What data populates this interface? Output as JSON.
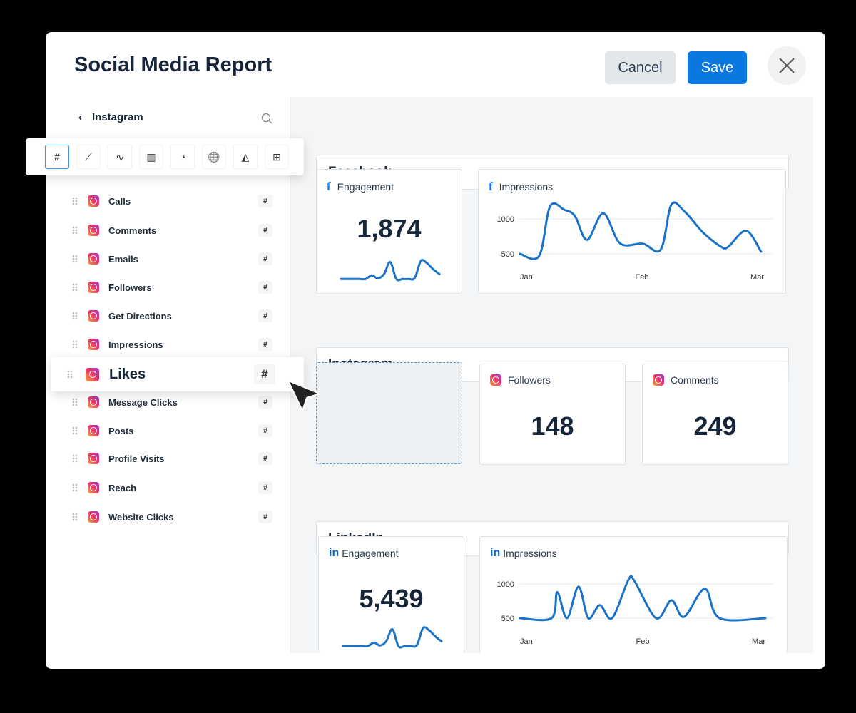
{
  "header": {
    "title": "Social Media Report",
    "cancel_label": "Cancel",
    "save_label": "Save"
  },
  "sidebar": {
    "back_title": "Instagram",
    "toolbar": [
      "number",
      "line-chart",
      "sparkline",
      "bar-chart",
      "pie-chart",
      "globe",
      "area-chart",
      "table"
    ],
    "toolbar_active_label": "#",
    "items": [
      {
        "label": "Calls"
      },
      {
        "label": "Comments"
      },
      {
        "label": "Emails"
      },
      {
        "label": "Followers"
      },
      {
        "label": "Get Directions"
      },
      {
        "label": "Impressions"
      },
      {
        "label": "Message Clicks"
      },
      {
        "label": "Posts"
      },
      {
        "label": "Profile Visits"
      },
      {
        "label": "Reach"
      },
      {
        "label": "Website Clicks"
      }
    ],
    "dragging": {
      "label": "Likes"
    },
    "hash": "#"
  },
  "sections": {
    "facebook": {
      "title": "Facebook",
      "engagement_label": "Engagement",
      "engagement_value": "1,874",
      "impressions_label": "Impressions"
    },
    "instagram": {
      "title": "Instagram",
      "followers_label": "Followers",
      "followers_value": "148",
      "comments_label": "Comments",
      "comments_value": "249"
    },
    "linkedin": {
      "title": "LinkedIn",
      "engagement_label": "Engagement",
      "engagement_value": "5,439",
      "impressions_label": "Impressions"
    }
  },
  "colors": {
    "accent": "#0a78e0",
    "line": "#1a73c9"
  },
  "chart_data": [
    {
      "type": "line",
      "title": "Facebook Impressions",
      "x_ticks": [
        "Jan",
        "Feb",
        "Mar"
      ],
      "y_ticks": [
        500,
        1000
      ],
      "x": [
        0,
        4.7,
        7.4,
        10.9,
        13.5,
        16.5,
        20.5,
        24.6,
        30.2,
        34.6,
        37.2,
        40.4,
        45.1,
        49.5,
        51.2,
        55.6,
        59.3
      ],
      "y": [
        500,
        470,
        1180,
        1130,
        1040,
        700,
        1080,
        650,
        645,
        560,
        1200,
        1110,
        800,
        600,
        600,
        830,
        530
      ]
    },
    {
      "type": "line",
      "title": "LinkedIn Impressions",
      "x_ticks": [
        "Jan",
        "Feb",
        "Mar"
      ],
      "y_ticks": [
        500,
        1000
      ],
      "x": [
        0,
        7.7,
        9.1,
        11.5,
        14.3,
        16.7,
        19.5,
        22.5,
        26.5,
        28,
        33.3,
        37,
        40.1,
        45.2,
        48.8,
        60
      ],
      "y": [
        500,
        500,
        880,
        500,
        960,
        500,
        690,
        500,
        1060,
        1040,
        500,
        760,
        520,
        930,
        500,
        500
      ]
    },
    {
      "type": "line",
      "title": "Facebook Engagement sparkline",
      "y": [
        5,
        5,
        5,
        5,
        5,
        20,
        8,
        25,
        75,
        5,
        5,
        5,
        10,
        80,
        70,
        45,
        25
      ]
    },
    {
      "type": "line",
      "title": "LinkedIn Engagement sparkline",
      "y": [
        5,
        5,
        5,
        5,
        5,
        20,
        8,
        25,
        75,
        5,
        5,
        5,
        10,
        80,
        70,
        45,
        25
      ]
    }
  ]
}
